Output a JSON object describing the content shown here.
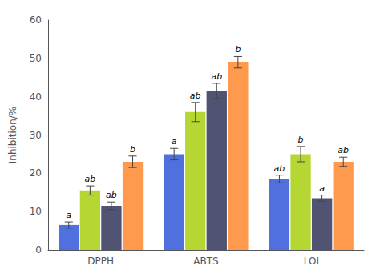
{
  "chart_data": {
    "type": "bar",
    "categories": [
      "DPPH",
      "ABTS",
      "LOI"
    ],
    "series": [
      {
        "values": [
          6.5,
          25.0,
          18.5
        ],
        "errors": [
          0.8,
          1.5,
          1.0
        ],
        "annotations": [
          "a",
          "a",
          "ab"
        ]
      },
      {
        "values": [
          15.5,
          36.0,
          25.0
        ],
        "errors": [
          1.2,
          2.5,
          2.0
        ],
        "annotations": [
          "ab",
          "ab",
          "b"
        ]
      },
      {
        "values": [
          11.5,
          41.5,
          13.5
        ],
        "errors": [
          1.0,
          2.0,
          0.8
        ],
        "annotations": [
          "ab",
          "ab",
          "a"
        ]
      },
      {
        "values": [
          23.0,
          49.0,
          23.0
        ],
        "errors": [
          1.5,
          1.5,
          1.2
        ],
        "annotations": [
          "b",
          "b",
          "ab"
        ]
      }
    ],
    "y_label": "Inhibition/%",
    "ylim": [
      0,
      60
    ],
    "yticks": [
      0,
      10,
      20,
      30,
      40,
      50,
      60
    ],
    "grid": false
  }
}
